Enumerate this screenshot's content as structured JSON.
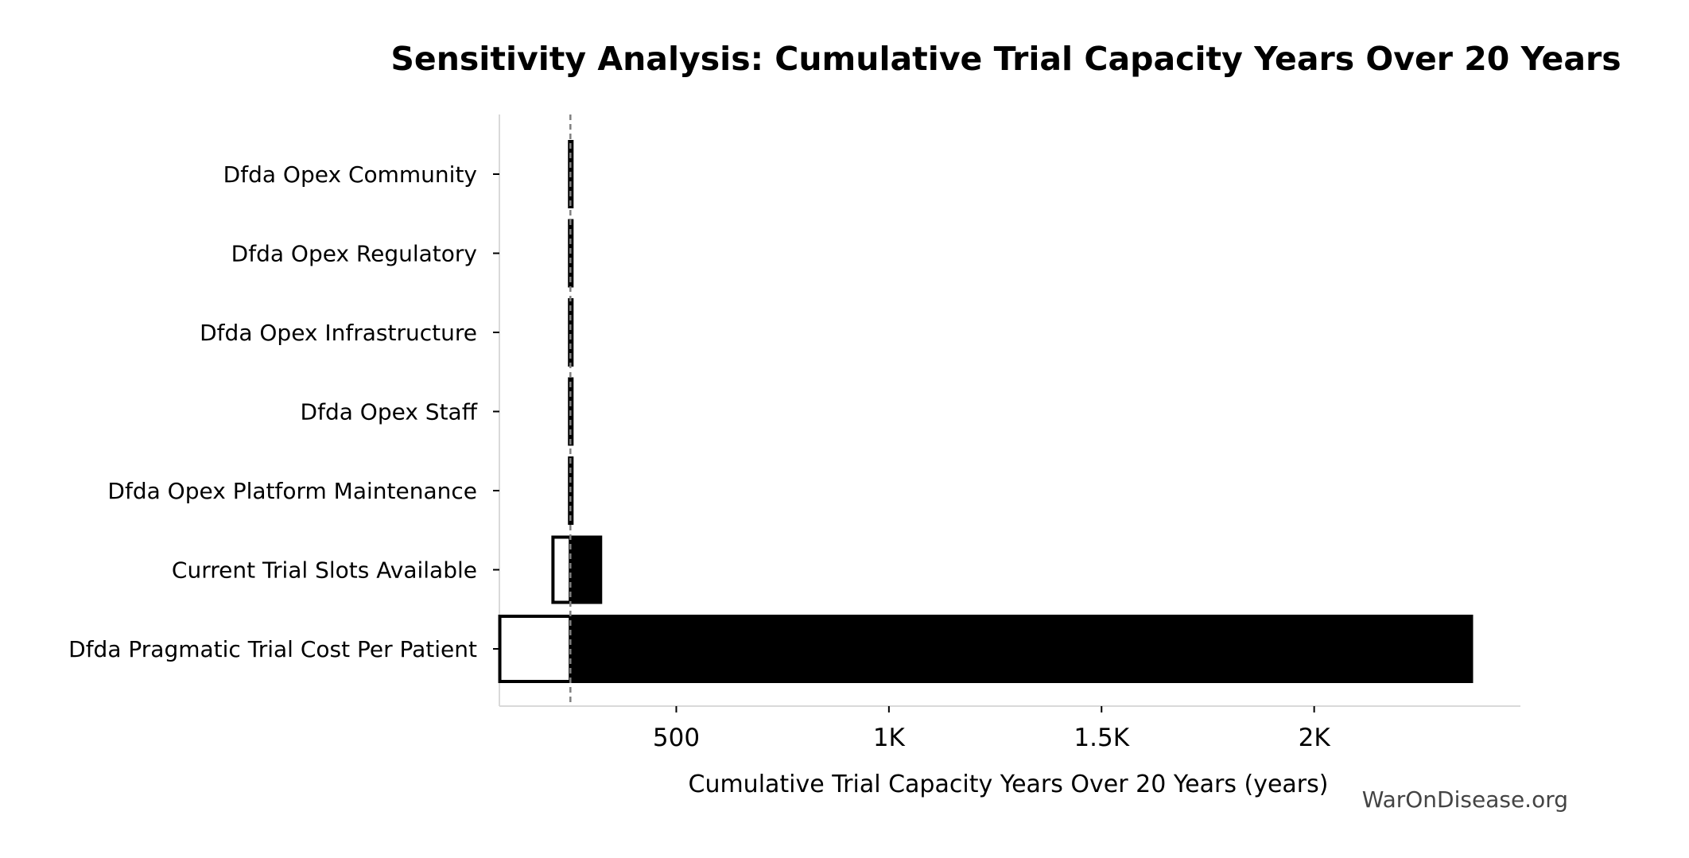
{
  "chart_data": {
    "type": "bar",
    "orientation": "horizontal",
    "subtype": "tornado",
    "title": "Sensitivity Analysis: Cumulative Trial Capacity Years Over 20 Years",
    "xlabel": "Cumulative Trial Capacity Years Over 20 Years (years)",
    "ylabel": "",
    "watermark": "WarOnDisease.org",
    "xlim": [
      84,
      2485
    ],
    "baseline": 251,
    "x_ticks": [
      {
        "value": 500,
        "label": "500"
      },
      {
        "value": 1000,
        "label": "1K"
      },
      {
        "value": 1500,
        "label": "1.5K"
      },
      {
        "value": 2000,
        "label": "2K"
      }
    ],
    "categories": [
      "Dfda Opex Community",
      "Dfda Opex Regulatory",
      "Dfda Opex Infrastructure",
      "Dfda Opex Staff",
      "Dfda Opex Platform Maintenance",
      "Current Trial Slots Available",
      "Dfda Pragmatic Trial Cost Per Patient"
    ],
    "low_values": [
      249,
      249,
      249,
      249,
      249,
      210,
      85
    ],
    "high_values": [
      253,
      253,
      253,
      253,
      253,
      322,
      2370
    ],
    "grid": false,
    "legend": "none",
    "colors": {
      "high_fill": "#000000",
      "low_fill": "#ffffff",
      "edge": "#000000",
      "baseline": "#808080",
      "axis": "#d9d9d9",
      "watermark": "#444444"
    }
  }
}
